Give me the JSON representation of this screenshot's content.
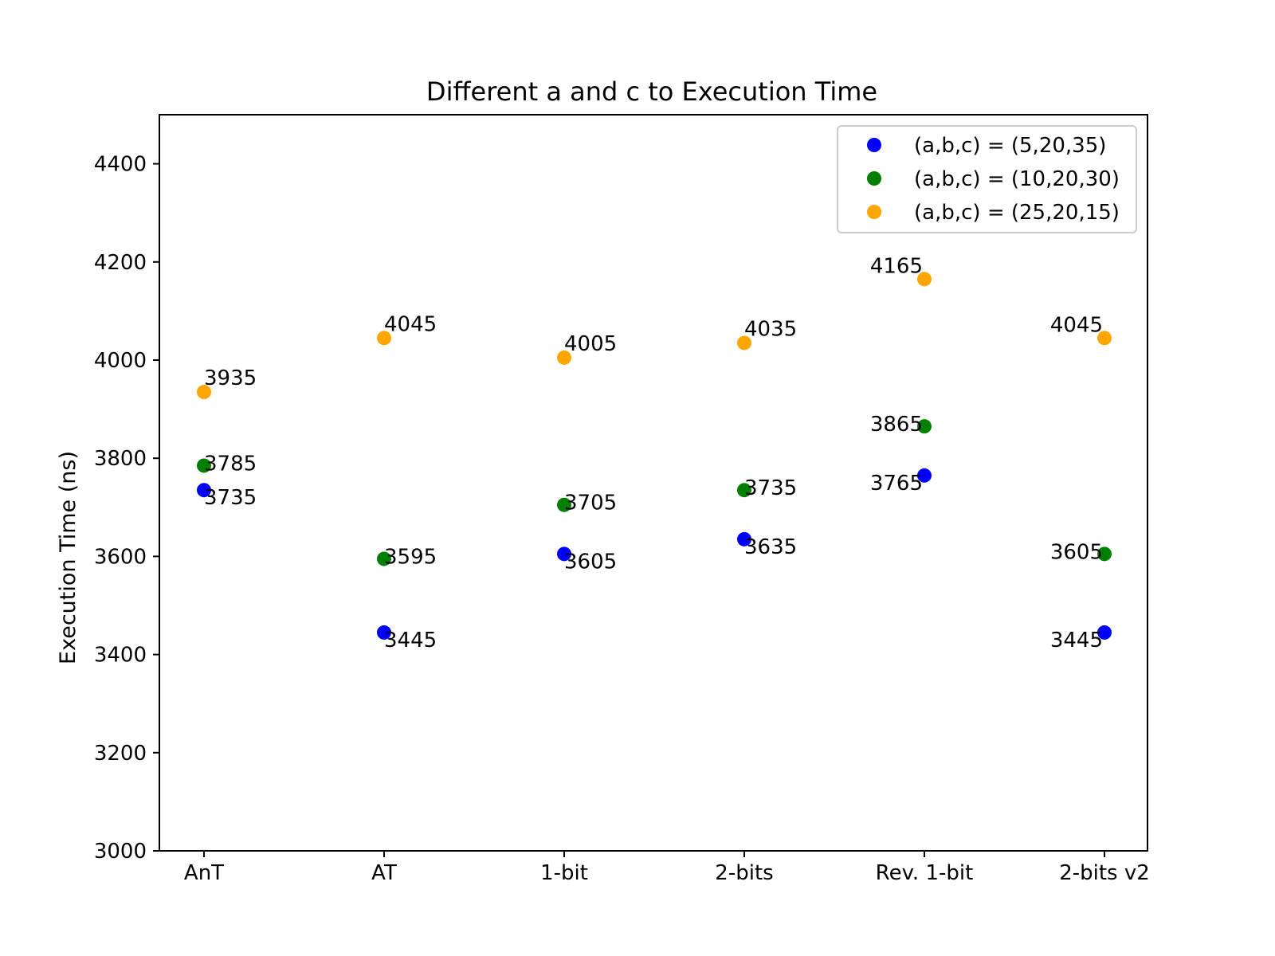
{
  "chart_data": {
    "type": "scatter",
    "title": "Different a and c to Execution Time",
    "xlabel": "",
    "ylabel": "Execution Time (ns)",
    "categories": [
      "AnT",
      "AT",
      "1-bit",
      "2-bits",
      "Rev. 1-bit",
      "2-bits v2"
    ],
    "ylim": [
      3000,
      4500
    ],
    "yticks": [
      3000,
      3200,
      3400,
      3600,
      3800,
      4000,
      4200,
      4400
    ],
    "grid": false,
    "legend_position": "top-right",
    "series": [
      {
        "name": "(a,b,c) = (5,20,35)",
        "color": "#0000ff",
        "values": [
          3735,
          3445,
          3605,
          3635,
          3765,
          3445
        ]
      },
      {
        "name": "(a,b,c) = (10,20,30)",
        "color": "#008000",
        "values": [
          3785,
          3595,
          3705,
          3735,
          3865,
          3605
        ]
      },
      {
        "name": "(a,b,c) = (25,20,15)",
        "color": "#ffa500",
        "values": [
          3935,
          4045,
          4005,
          4035,
          4165,
          4045
        ]
      }
    ]
  }
}
